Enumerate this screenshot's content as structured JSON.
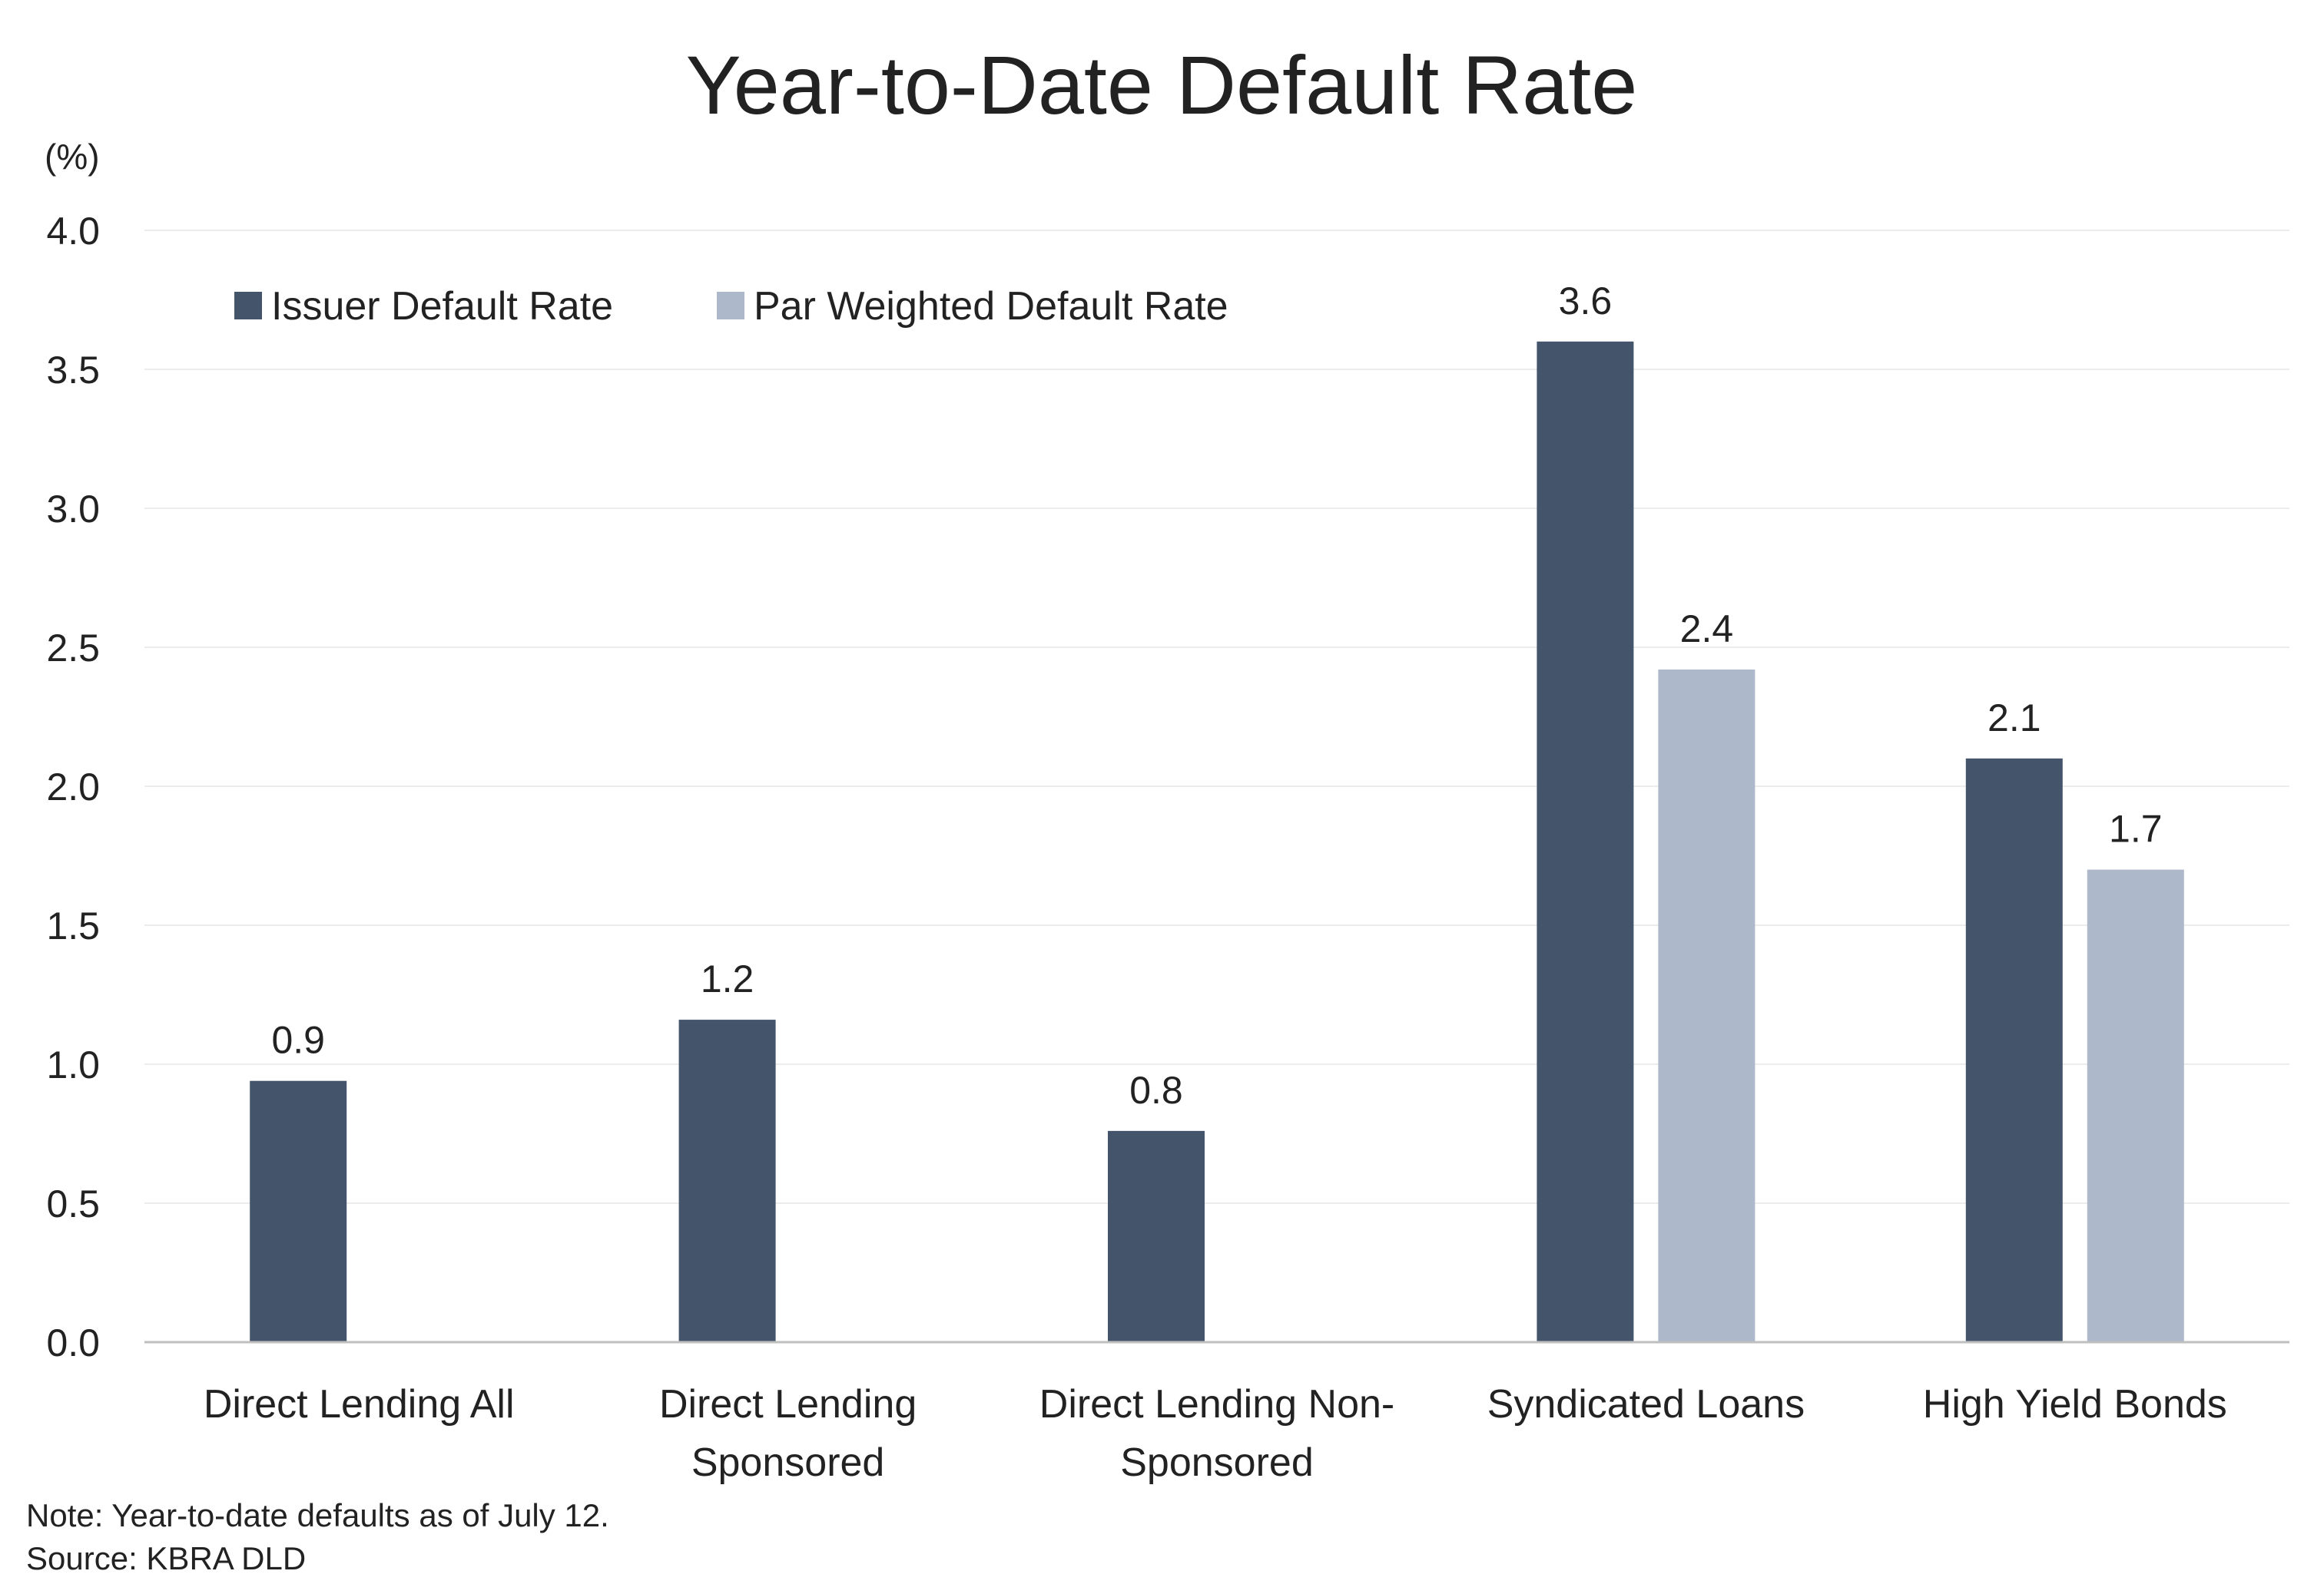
{
  "chart_data": {
    "type": "bar",
    "title": "Year-to-Date Default Rate",
    "unit_label": "(%)",
    "xlabel": "",
    "ylabel": "",
    "ylim": [
      0,
      4.0
    ],
    "y_ticks": [
      "0.0",
      "0.5",
      "1.0",
      "1.5",
      "2.0",
      "2.5",
      "3.0",
      "3.5",
      "4.0"
    ],
    "categories": [
      [
        "Direct Lending All"
      ],
      [
        "Direct Lending",
        "Sponsored"
      ],
      [
        "Direct Lending Non-",
        "Sponsored"
      ],
      [
        "Syndicated Loans"
      ],
      [
        "High Yield Bonds"
      ]
    ],
    "series": [
      {
        "name": "Issuer Default Rate",
        "color": "#44546a",
        "values": [
          0.94,
          1.16,
          0.76,
          3.6,
          2.1
        ],
        "labels": [
          "0.9",
          "1.2",
          "0.8",
          "3.6",
          "2.1"
        ]
      },
      {
        "name": "Par Weighted Default Rate",
        "color": "#adb9ca",
        "values": [
          null,
          null,
          null,
          2.42,
          1.7
        ],
        "labels": [
          null,
          null,
          null,
          "2.4",
          "1.7"
        ]
      }
    ],
    "grid": true,
    "legend_position": "top-left",
    "notes": [
      "Note: Year-to-date defaults as of July 12.",
      "Source: KBRA DLD"
    ]
  }
}
